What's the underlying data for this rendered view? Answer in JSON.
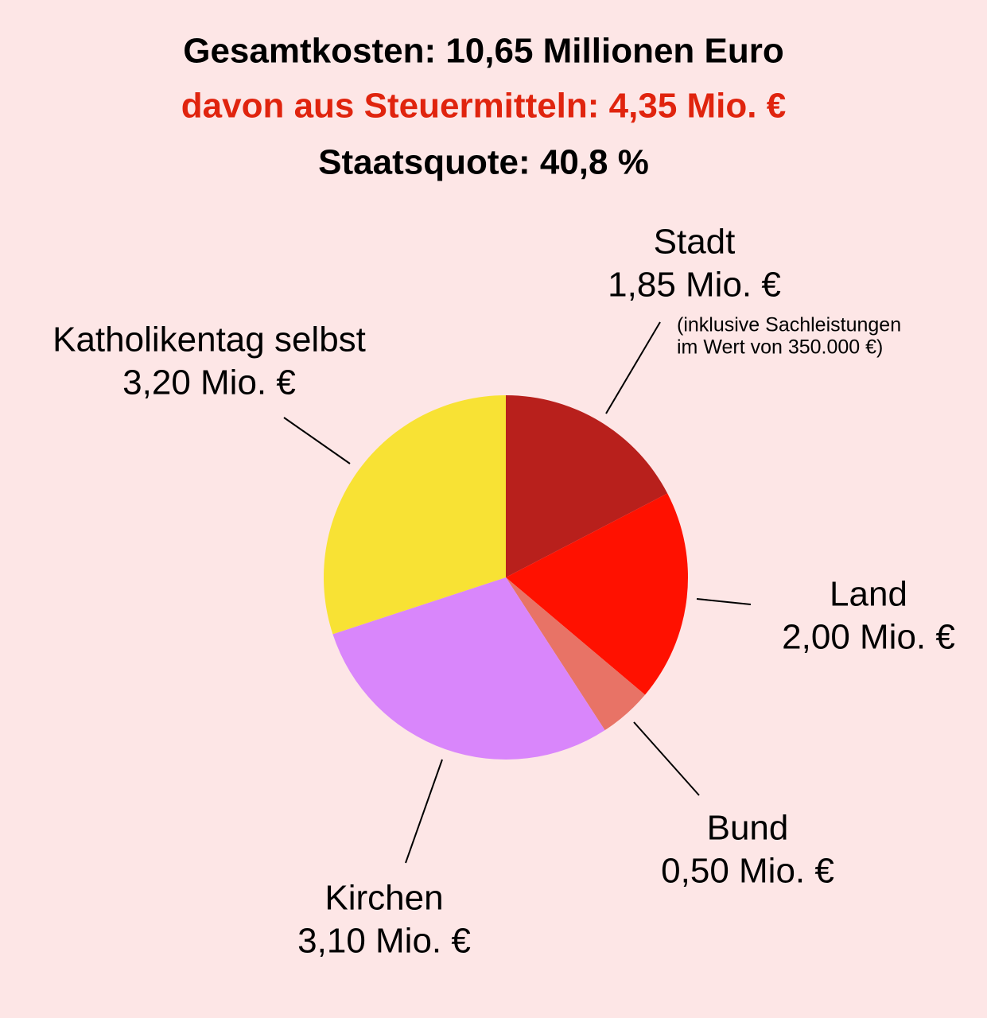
{
  "chart_data": {
    "type": "pie",
    "title": "Gesamtkosten: 10,65 Millionen Euro",
    "subtitle": "davon aus Steuermitteln: 4,35 Mio. €",
    "subtitle_color": "#e0240e",
    "caption": "Staatsquote: 40,8 %",
    "categories": [
      "Stadt",
      "Land",
      "Bund",
      "Kirchen",
      "Katholikentag selbst"
    ],
    "values": [
      1.85,
      2.0,
      0.5,
      3.1,
      3.2
    ],
    "value_labels": [
      "1,85 Mio. €",
      "2,00 Mio. €",
      "0,50 Mio. €",
      "3,10 Mio. €",
      "3,20 Mio. €"
    ],
    "colors": [
      "#b8201c",
      "#ff1100",
      "#e87366",
      "#d986fb",
      "#f8e234"
    ],
    "note": [
      "(inklusive Sachleistungen",
      "im Wert von 350.000 €)"
    ]
  }
}
